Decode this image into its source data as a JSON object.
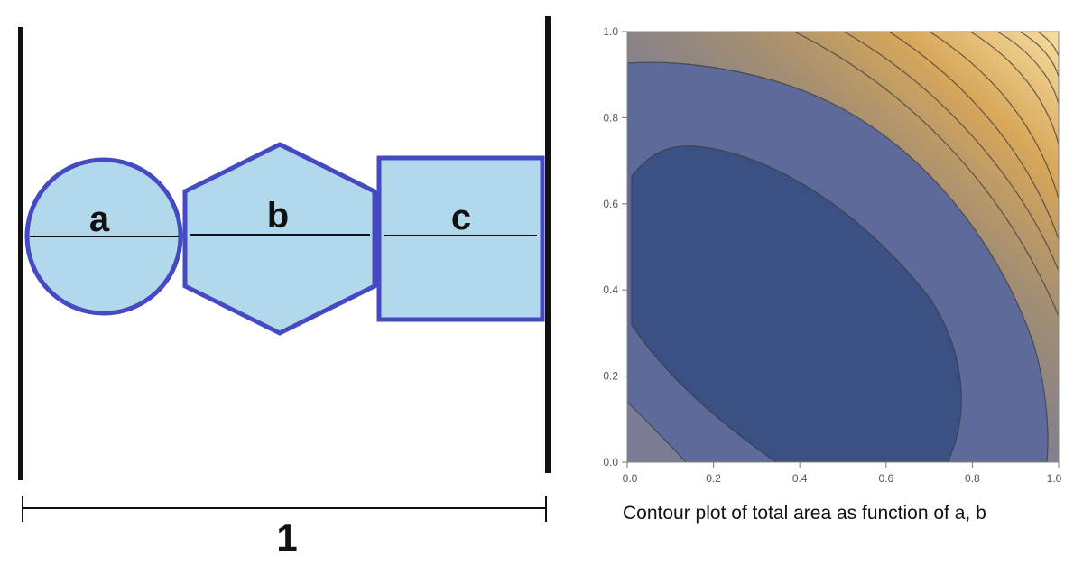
{
  "diagram": {
    "shapes": [
      {
        "label": "a",
        "kind": "circle"
      },
      {
        "label": "b",
        "kind": "hexagon"
      },
      {
        "label": "c",
        "kind": "square"
      }
    ],
    "total_length_label": "1",
    "colors": {
      "fill": "#b1d9eb",
      "outline": "#4549c2",
      "line": "#111111"
    }
  },
  "contour": {
    "caption": "Contour plot of total area as function of a, b",
    "x_ticks": [
      "0.0",
      "0.2",
      "0.4",
      "0.6",
      "0.8",
      "1.0"
    ],
    "y_ticks": [
      "0.0",
      "0.2",
      "0.4",
      "0.6",
      "0.8",
      "1.0"
    ],
    "xlim": [
      0,
      1
    ],
    "ylim": [
      0,
      1
    ],
    "colors": {
      "low": "#3b5184",
      "high": "#f6dd9f",
      "contour_line": "#3a3a3a"
    }
  }
}
